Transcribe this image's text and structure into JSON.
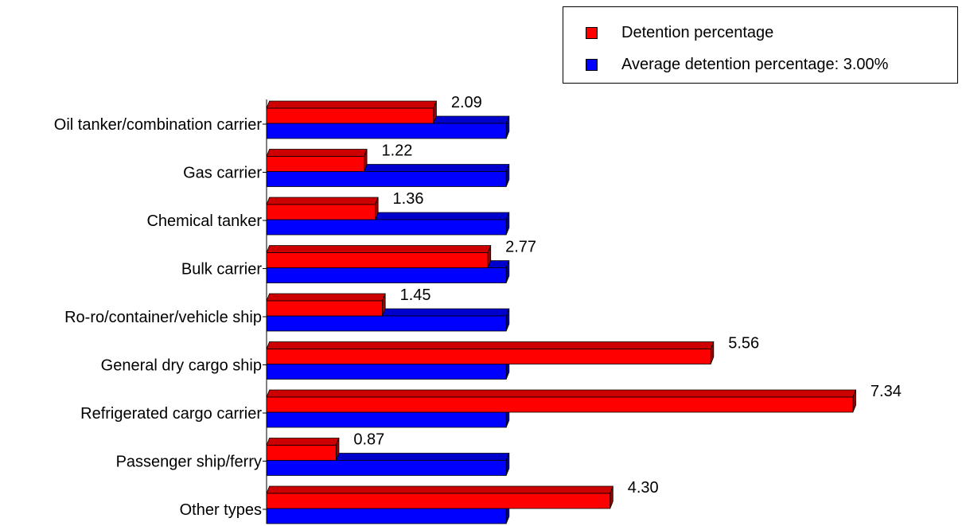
{
  "chart_data": {
    "type": "bar",
    "orientation": "horizontal",
    "three_d": true,
    "categories": [
      "Oil tanker/combination carrier",
      "Gas carrier",
      "Chemical tanker",
      "Bulk carrier",
      "Ro-ro/container/vehicle ship",
      "General dry cargo ship",
      "Refrigerated cargo carrier",
      "Passenger ship/ferry",
      "Other types"
    ],
    "series": [
      {
        "name": "Detention percentage",
        "color": "#ff0000",
        "values": [
          2.09,
          1.22,
          1.36,
          2.77,
          1.45,
          5.56,
          7.34,
          0.87,
          4.3
        ],
        "value_labels": [
          "2.09",
          "1.22",
          "1.36",
          "2.77",
          "1.45",
          "5.56",
          "7.34",
          "0.87",
          "4.30"
        ]
      },
      {
        "name": "Average detention percentage: 3.00%",
        "color": "#0000ff",
        "values": [
          3.0,
          3.0,
          3.0,
          3.0,
          3.0,
          3.0,
          3.0,
          3.0,
          3.0
        ]
      }
    ],
    "xlim": [
      0,
      7.34
    ],
    "grid": false,
    "legend_position": "top-right"
  }
}
